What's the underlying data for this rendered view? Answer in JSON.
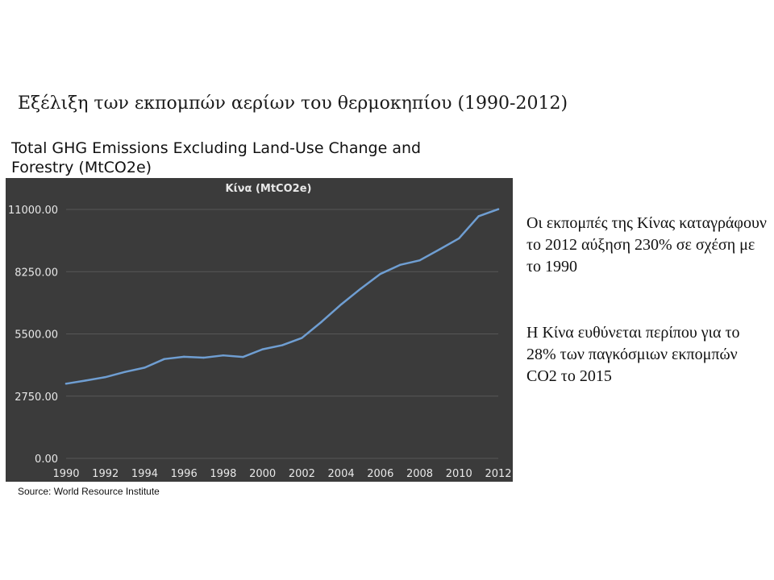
{
  "slide": {
    "title": "Εξέλιξη των εκπομπών αερίων του θερμοκηπίου (1990-2012)",
    "source": "Source: World Resource Institute",
    "paragraph_1": "Οι εκπομπές της Κίνας καταγράφουν το 2012 αύξηση 230% σε σχέση με το 1990",
    "paragraph_2": "Η Κίνα ευθύνεται περίπου για το 28% των παγκόσμιων εκπομπών CO2 το 2015"
  },
  "chart_heading": "Total GHG Emissions Excluding Land-Use Change and Forestry (MtCO2e)",
  "chart_data": {
    "type": "line",
    "title": "Κίνα (MtCO2e)",
    "xlabel": "",
    "ylabel": "",
    "x": [
      1990,
      1991,
      1992,
      1993,
      1994,
      1995,
      1996,
      1997,
      1998,
      1999,
      2000,
      2001,
      2002,
      2003,
      2004,
      2005,
      2006,
      2007,
      2008,
      2009,
      2010,
      2011,
      2012
    ],
    "series": [
      {
        "values": [
          3300,
          3440,
          3590,
          3820,
          4010,
          4390,
          4490,
          4450,
          4550,
          4480,
          4820,
          5000,
          5320,
          6030,
          6800,
          7500,
          8150,
          8550,
          8750,
          9230,
          9720,
          10700,
          11010
        ]
      }
    ],
    "ylim": [
      0,
      11000
    ],
    "xlim": [
      1990,
      2012
    ],
    "yticks": [
      "0.00",
      "2750.00",
      "5500.00",
      "8250.00",
      "11000.00"
    ],
    "xticks": [
      "1990",
      "1992",
      "1994",
      "1996",
      "1998",
      "2000",
      "2002",
      "2004",
      "2006",
      "2008",
      "2010",
      "2012"
    ],
    "grid": true,
    "legend": "none",
    "colors": {
      "background": "#3b3b3b",
      "grid": "#575757",
      "line": "#6f9ed2",
      "text": "#e8e8e8"
    }
  }
}
